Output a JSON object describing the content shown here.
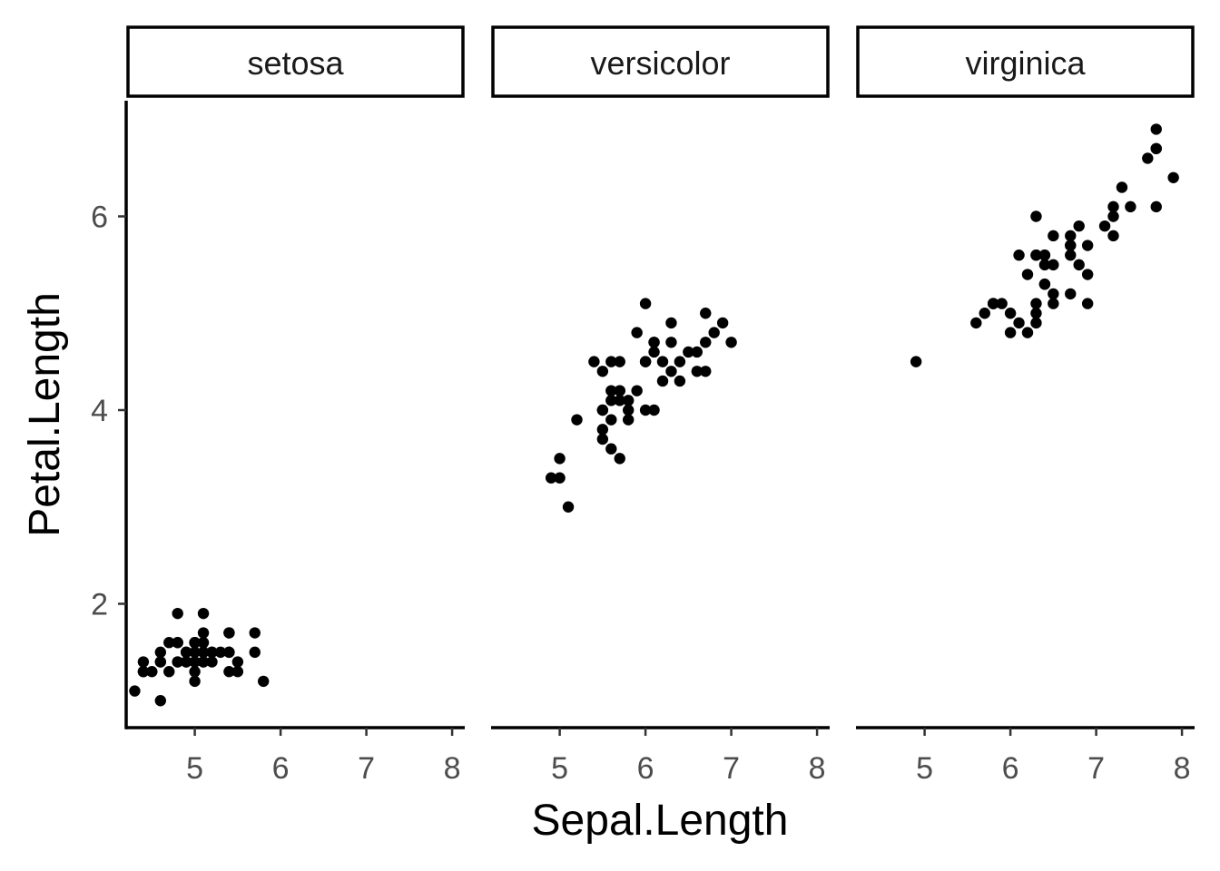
{
  "chart_data": {
    "type": "scatter",
    "facet_by": "Species",
    "xlabel": "Sepal.Length",
    "ylabel": "Petal.Length",
    "xlim": [
      4.2,
      8.0
    ],
    "ylim": [
      0.8,
      7.1
    ],
    "x_ticks": [
      5,
      6,
      7,
      8
    ],
    "y_ticks": [
      2,
      4,
      6
    ],
    "grid": false,
    "point_color": "#000000",
    "panels": [
      {
        "label": "setosa",
        "points": [
          [
            5.1,
            1.4
          ],
          [
            4.9,
            1.4
          ],
          [
            4.7,
            1.3
          ],
          [
            4.6,
            1.5
          ],
          [
            5.0,
            1.4
          ],
          [
            5.4,
            1.7
          ],
          [
            4.6,
            1.4
          ],
          [
            5.0,
            1.5
          ],
          [
            4.4,
            1.4
          ],
          [
            4.9,
            1.5
          ],
          [
            5.4,
            1.5
          ],
          [
            4.8,
            1.6
          ],
          [
            4.8,
            1.4
          ],
          [
            4.3,
            1.1
          ],
          [
            5.8,
            1.2
          ],
          [
            5.7,
            1.5
          ],
          [
            5.4,
            1.3
          ],
          [
            5.1,
            1.4
          ],
          [
            5.7,
            1.7
          ],
          [
            5.1,
            1.5
          ],
          [
            5.4,
            1.7
          ],
          [
            5.1,
            1.5
          ],
          [
            4.6,
            1.0
          ],
          [
            5.1,
            1.7
          ],
          [
            4.8,
            1.9
          ],
          [
            5.0,
            1.6
          ],
          [
            5.0,
            1.6
          ],
          [
            5.2,
            1.5
          ],
          [
            5.2,
            1.4
          ],
          [
            4.7,
            1.6
          ],
          [
            4.8,
            1.6
          ],
          [
            5.4,
            1.5
          ],
          [
            5.2,
            1.5
          ],
          [
            5.5,
            1.4
          ],
          [
            4.9,
            1.5
          ],
          [
            5.0,
            1.2
          ],
          [
            5.5,
            1.3
          ],
          [
            4.9,
            1.4
          ],
          [
            4.4,
            1.3
          ],
          [
            5.1,
            1.5
          ],
          [
            5.0,
            1.3
          ],
          [
            4.5,
            1.3
          ],
          [
            4.4,
            1.3
          ],
          [
            5.0,
            1.6
          ],
          [
            5.1,
            1.9
          ],
          [
            4.8,
            1.4
          ],
          [
            5.1,
            1.6
          ],
          [
            4.6,
            1.4
          ],
          [
            5.3,
            1.5
          ],
          [
            5.0,
            1.4
          ]
        ]
      },
      {
        "label": "versicolor",
        "points": [
          [
            7.0,
            4.7
          ],
          [
            6.4,
            4.5
          ],
          [
            6.9,
            4.9
          ],
          [
            5.5,
            4.0
          ],
          [
            6.5,
            4.6
          ],
          [
            5.7,
            4.5
          ],
          [
            6.3,
            4.7
          ],
          [
            4.9,
            3.3
          ],
          [
            6.6,
            4.6
          ],
          [
            5.2,
            3.9
          ],
          [
            5.0,
            3.5
          ],
          [
            5.9,
            4.2
          ],
          [
            6.0,
            4.0
          ],
          [
            6.1,
            4.7
          ],
          [
            5.6,
            3.6
          ],
          [
            6.7,
            4.4
          ],
          [
            5.6,
            4.5
          ],
          [
            5.8,
            4.1
          ],
          [
            6.2,
            4.5
          ],
          [
            5.6,
            3.9
          ],
          [
            5.9,
            4.8
          ],
          [
            6.1,
            4.0
          ],
          [
            6.3,
            4.9
          ],
          [
            6.1,
            4.7
          ],
          [
            6.4,
            4.3
          ],
          [
            6.6,
            4.4
          ],
          [
            6.8,
            4.8
          ],
          [
            6.7,
            5.0
          ],
          [
            6.0,
            4.5
          ],
          [
            5.7,
            3.5
          ],
          [
            5.5,
            3.8
          ],
          [
            5.5,
            3.7
          ],
          [
            5.8,
            3.9
          ],
          [
            6.0,
            5.1
          ],
          [
            5.4,
            4.5
          ],
          [
            6.0,
            4.5
          ],
          [
            6.7,
            4.7
          ],
          [
            6.3,
            4.4
          ],
          [
            5.6,
            4.1
          ],
          [
            5.5,
            4.0
          ],
          [
            5.5,
            4.4
          ],
          [
            6.1,
            4.6
          ],
          [
            5.8,
            4.0
          ],
          [
            5.0,
            3.3
          ],
          [
            5.6,
            4.2
          ],
          [
            5.7,
            4.2
          ],
          [
            5.7,
            4.2
          ],
          [
            6.2,
            4.3
          ],
          [
            5.1,
            3.0
          ],
          [
            5.7,
            4.1
          ]
        ]
      },
      {
        "label": "virginica",
        "points": [
          [
            6.3,
            6.0
          ],
          [
            5.8,
            5.1
          ],
          [
            7.1,
            5.9
          ],
          [
            6.3,
            5.6
          ],
          [
            6.5,
            5.8
          ],
          [
            7.6,
            6.6
          ],
          [
            4.9,
            4.5
          ],
          [
            7.3,
            6.3
          ],
          [
            6.7,
            5.8
          ],
          [
            7.2,
            6.1
          ],
          [
            6.5,
            5.1
          ],
          [
            6.4,
            5.3
          ],
          [
            6.8,
            5.5
          ],
          [
            5.7,
            5.0
          ],
          [
            5.8,
            5.1
          ],
          [
            6.4,
            5.3
          ],
          [
            6.5,
            5.5
          ],
          [
            7.7,
            6.7
          ],
          [
            7.7,
            6.9
          ],
          [
            6.0,
            5.0
          ],
          [
            6.9,
            5.7
          ],
          [
            5.6,
            4.9
          ],
          [
            7.7,
            6.7
          ],
          [
            6.3,
            4.9
          ],
          [
            6.7,
            5.7
          ],
          [
            7.2,
            6.0
          ],
          [
            6.2,
            4.8
          ],
          [
            6.1,
            4.9
          ],
          [
            6.4,
            5.6
          ],
          [
            7.2,
            5.8
          ],
          [
            7.4,
            6.1
          ],
          [
            7.9,
            6.4
          ],
          [
            6.4,
            5.6
          ],
          [
            6.3,
            5.1
          ],
          [
            6.1,
            5.6
          ],
          [
            7.7,
            6.1
          ],
          [
            6.3,
            5.6
          ],
          [
            6.4,
            5.5
          ],
          [
            6.0,
            4.8
          ],
          [
            6.9,
            5.4
          ],
          [
            6.7,
            5.6
          ],
          [
            6.9,
            5.1
          ],
          [
            5.8,
            5.1
          ],
          [
            6.8,
            5.9
          ],
          [
            6.7,
            5.7
          ],
          [
            6.7,
            5.2
          ],
          [
            6.3,
            5.0
          ],
          [
            6.5,
            5.2
          ],
          [
            6.2,
            5.4
          ],
          [
            5.9,
            5.1
          ]
        ]
      }
    ]
  }
}
